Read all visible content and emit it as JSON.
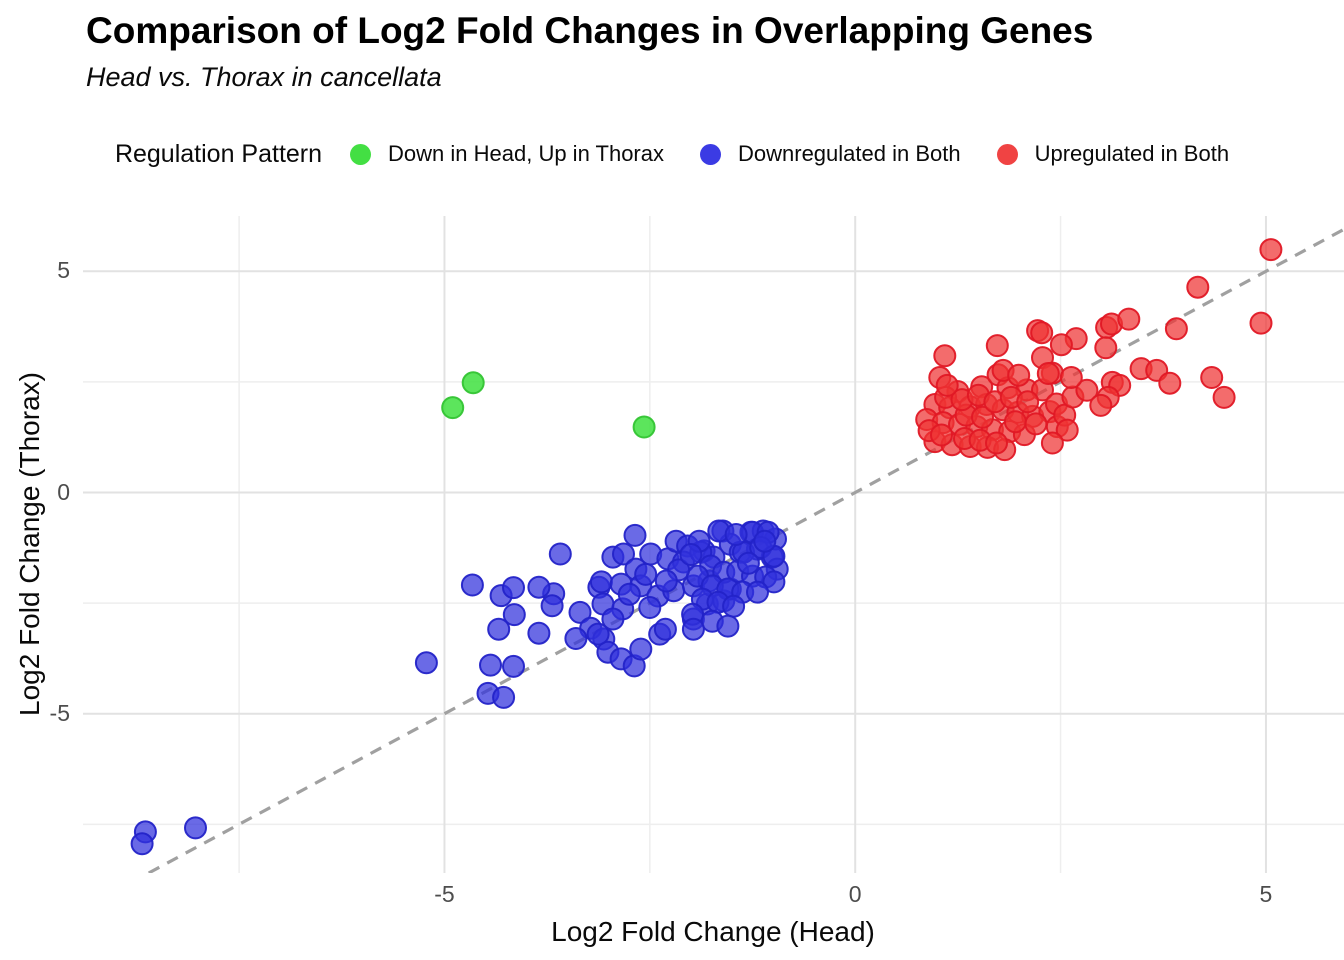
{
  "header": {
    "title": "Comparison of Log2 Fold Changes in Overlapping Genes",
    "subtitle": "Head vs. Thorax in cancellata"
  },
  "legend": {
    "title": "Regulation Pattern",
    "items": [
      {
        "label": "Down in Head, Up in Thorax",
        "color": "#43df43"
      },
      {
        "label": "Downregulated in Both",
        "color": "#3b3be4"
      },
      {
        "label": "Upregulated in Both",
        "color": "#f04343"
      }
    ]
  },
  "chart_data": {
    "type": "scatter",
    "title": "Comparison of Log2 Fold Changes in Overlapping Genes",
    "subtitle": "Head vs. Thorax in cancellata",
    "xlabel": "Log2 Fold Change (Head)",
    "ylabel": "Log2 Fold Change (Thorax)",
    "xlim": [
      -9.4,
      5.95
    ],
    "ylim": [
      -8.6,
      6.25
    ],
    "grid": true,
    "legend_position": "top",
    "x_ticks": [
      {
        "value": -5,
        "label": "-5"
      },
      {
        "value": 0,
        "label": "0"
      },
      {
        "value": 5,
        "label": "5"
      }
    ],
    "y_ticks": [
      {
        "value": 5,
        "label": "5"
      },
      {
        "value": 0,
        "label": "0"
      },
      {
        "value": -5,
        "label": "-5"
      }
    ],
    "x_minor_ticks": [
      -7.5,
      -2.5,
      2.5
    ],
    "y_minor_ticks": [
      -7.5,
      -2.5,
      2.5
    ],
    "grid_major_color": "#e2e2e2",
    "grid_minor_color": "#eeeeee",
    "identity_line": {
      "equation": "y = x",
      "style": "dashed",
      "color": "#a0a0a0"
    },
    "point_radius": 10.5,
    "series": [
      {
        "name": "Down in Head, Up in Thorax",
        "fill": "#3fe03f",
        "stroke": "#33c433",
        "fill_opacity": 0.85,
        "points": [
          [
            -4.65,
            2.48
          ],
          [
            -4.9,
            1.92
          ],
          [
            -2.57,
            1.48
          ]
        ]
      },
      {
        "name": "Downregulated in Both",
        "fill": "#3030dc",
        "stroke": "#2323c8",
        "fill_opacity": 0.72,
        "points": [
          [
            -8.64,
            -7.67
          ],
          [
            -8.68,
            -7.94
          ],
          [
            -8.03,
            -7.58
          ],
          [
            -5.22,
            -3.85
          ],
          [
            -4.47,
            -4.54
          ],
          [
            -4.28,
            -4.63
          ],
          [
            -4.44,
            -3.9
          ],
          [
            -4.16,
            -3.93
          ],
          [
            -4.34,
            -3.09
          ],
          [
            -3.85,
            -3.18
          ],
          [
            -4.15,
            -2.76
          ],
          [
            -4.31,
            -2.33
          ],
          [
            -4.16,
            -2.15
          ],
          [
            -4.66,
            -2.09
          ],
          [
            -3.67,
            -2.29
          ],
          [
            -3.69,
            -2.56
          ],
          [
            -3.59,
            -1.39
          ],
          [
            -3.35,
            -2.71
          ],
          [
            -3.22,
            -3.07
          ],
          [
            -3.4,
            -3.3
          ],
          [
            -3.06,
            -3.31
          ],
          [
            -3.01,
            -3.61
          ],
          [
            -2.85,
            -3.76
          ],
          [
            -2.69,
            -3.92
          ],
          [
            -2.61,
            -3.54
          ],
          [
            -2.38,
            -3.2
          ],
          [
            -2.31,
            -3.09
          ],
          [
            -1.97,
            -2.86
          ],
          [
            -3.85,
            -2.14
          ],
          [
            -3.12,
            -2.14
          ],
          [
            -3.13,
            -3.2
          ],
          [
            -2.95,
            -1.46
          ],
          [
            -2.82,
            -1.39
          ],
          [
            -2.68,
            -0.97
          ],
          [
            -2.67,
            -1.73
          ],
          [
            -2.49,
            -1.39
          ],
          [
            -3.09,
            -2.02
          ],
          [
            -2.85,
            -2.07
          ],
          [
            -2.83,
            -2.63
          ],
          [
            -3.07,
            -2.52
          ],
          [
            -2.95,
            -2.86
          ],
          [
            -2.61,
            -2.11
          ],
          [
            -2.4,
            -2.34
          ],
          [
            -2.21,
            -2.22
          ],
          [
            -2.28,
            -1.5
          ],
          [
            -2.18,
            -1.1
          ],
          [
            -2.04,
            -1.21
          ],
          [
            -2.09,
            -1.57
          ],
          [
            -1.97,
            -2.11
          ],
          [
            -1.84,
            -1.32
          ],
          [
            -1.78,
            -2.0
          ],
          [
            -1.8,
            -2.52
          ],
          [
            -1.6,
            -2.45
          ],
          [
            -1.72,
            -1.46
          ],
          [
            -1.61,
            -0.87
          ],
          [
            -1.52,
            -1.17
          ],
          [
            -1.4,
            -1.35
          ],
          [
            -1.27,
            -0.9
          ],
          [
            -1.19,
            -1.28
          ],
          [
            -1.12,
            -0.87
          ],
          [
            -1.01,
            -1.46
          ],
          [
            -0.97,
            -1.05
          ],
          [
            -0.95,
            -1.73
          ],
          [
            -1.52,
            -2.18
          ],
          [
            -1.66,
            -0.87
          ],
          [
            -1.25,
            -0.9
          ],
          [
            -1.06,
            -0.9
          ],
          [
            -1.36,
            -1.35
          ],
          [
            -1.15,
            -1.24
          ],
          [
            -0.99,
            -1.44
          ],
          [
            -1.88,
            -1.35
          ],
          [
            -1.76,
            -1.66
          ],
          [
            -1.6,
            -1.8
          ],
          [
            -1.43,
            -1.78
          ],
          [
            -1.25,
            -1.89
          ],
          [
            -1.09,
            -1.91
          ],
          [
            -0.99,
            -2.02
          ],
          [
            -1.92,
            -1.89
          ],
          [
            -1.74,
            -2.11
          ],
          [
            -1.55,
            -2.18
          ],
          [
            -1.37,
            -2.25
          ],
          [
            -1.19,
            -2.25
          ],
          [
            -1.86,
            -2.41
          ],
          [
            -1.67,
            -2.48
          ],
          [
            -1.48,
            -2.57
          ],
          [
            -1.98,
            -2.75
          ],
          [
            -1.74,
            -2.91
          ],
          [
            -1.55,
            -3.02
          ],
          [
            -1.97,
            -3.09
          ],
          [
            -2.55,
            -1.85
          ],
          [
            -2.15,
            -1.75
          ],
          [
            -1.9,
            -1.1
          ],
          [
            -1.3,
            -1.6
          ],
          [
            -1.1,
            -1.1
          ],
          [
            -2.75,
            -2.3
          ],
          [
            -2.5,
            -2.6
          ],
          [
            -2.3,
            -2.0
          ],
          [
            -2.0,
            -1.4
          ],
          [
            -1.45,
            -0.95
          ]
        ]
      },
      {
        "name": "Upregulated in Both",
        "fill": "#ee3333",
        "stroke": "#e01825",
        "fill_opacity": 0.72,
        "points": [
          [
            1.25,
            2.28
          ],
          [
            1.54,
            2.39
          ],
          [
            1.74,
            2.66
          ],
          [
            1.86,
            2.37
          ],
          [
            2.09,
            2.32
          ],
          [
            2.28,
            2.32
          ],
          [
            0.97,
            1.99
          ],
          [
            1.15,
            1.92
          ],
          [
            1.4,
            1.94
          ],
          [
            1.6,
            1.99
          ],
          [
            1.8,
            1.87
          ],
          [
            1.98,
            1.81
          ],
          [
            2.16,
            1.72
          ],
          [
            2.37,
            1.83
          ],
          [
            2.46,
            1.49
          ],
          [
            0.87,
            1.65
          ],
          [
            1.07,
            1.58
          ],
          [
            1.27,
            1.54
          ],
          [
            1.48,
            1.49
          ],
          [
            1.67,
            1.42
          ],
          [
            1.88,
            1.38
          ],
          [
            2.06,
            1.31
          ],
          [
            0.97,
            1.15
          ],
          [
            1.18,
            1.08
          ],
          [
            1.4,
            1.04
          ],
          [
            1.61,
            1.02
          ],
          [
            1.82,
            0.97
          ],
          [
            1.33,
            1.22
          ],
          [
            1.52,
            1.18
          ],
          [
            1.72,
            1.12
          ],
          [
            0.9,
            1.4
          ],
          [
            1.05,
            1.3
          ],
          [
            1.95,
            1.6
          ],
          [
            2.2,
            1.55
          ],
          [
            1.35,
            1.75
          ],
          [
            1.55,
            1.7
          ],
          [
            1.1,
            2.15
          ],
          [
            1.3,
            2.1
          ],
          [
            1.5,
            2.2
          ],
          [
            1.7,
            2.05
          ],
          [
            1.9,
            2.15
          ],
          [
            2.1,
            2.05
          ],
          [
            1.03,
            2.6
          ],
          [
            1.12,
            2.42
          ],
          [
            2.45,
            2.0
          ],
          [
            2.55,
            1.75
          ],
          [
            1.09,
            3.09
          ],
          [
            1.73,
            3.32
          ],
          [
            2.22,
            3.66
          ],
          [
            2.69,
            3.48
          ],
          [
            3.06,
            3.73
          ],
          [
            2.51,
            3.34
          ],
          [
            1.8,
            2.76
          ],
          [
            1.99,
            2.65
          ],
          [
            2.28,
            3.05
          ],
          [
            2.4,
            2.7
          ],
          [
            2.65,
            2.16
          ],
          [
            2.82,
            2.31
          ],
          [
            3.13,
            2.49
          ],
          [
            3.05,
            3.27
          ],
          [
            3.12,
            3.81
          ],
          [
            3.33,
            3.92
          ],
          [
            3.91,
            3.7
          ],
          [
            4.17,
            4.64
          ],
          [
            5.06,
            5.49
          ],
          [
            4.94,
            3.83
          ],
          [
            2.27,
            3.61
          ],
          [
            3.48,
            2.8
          ],
          [
            3.67,
            2.76
          ],
          [
            3.83,
            2.47
          ],
          [
            4.34,
            2.6
          ],
          [
            4.49,
            2.15
          ],
          [
            2.35,
            2.69
          ],
          [
            2.63,
            2.6
          ],
          [
            3.22,
            2.42
          ],
          [
            3.08,
            2.15
          ],
          [
            2.99,
            1.97
          ],
          [
            2.58,
            1.41
          ],
          [
            2.4,
            1.12
          ]
        ]
      }
    ]
  }
}
